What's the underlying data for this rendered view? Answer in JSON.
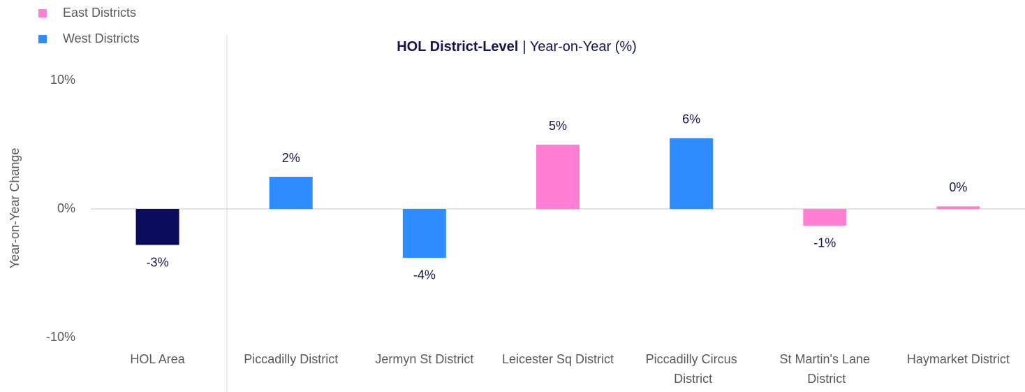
{
  "chart_data": {
    "type": "bar",
    "title": {
      "main": "HOL District-Level",
      "sub": "| Year-on-Year (%)"
    },
    "y_label": "Year-on-Year Change",
    "categories": [
      "HOL Area",
      "Piccadilly District",
      "Jermyn St District",
      "Leicester Sq District",
      "Piccadilly Circus District",
      "St Martin's Lane District",
      "Haymarket District"
    ],
    "values": [
      -2.8,
      2.5,
      -3.8,
      5.0,
      5.5,
      -1.3,
      0.2
    ],
    "value_labels": [
      "-3%",
      "2%",
      "-4%",
      "5%",
      "6%",
      "-1%",
      "0%"
    ],
    "colors": [
      "#0b0b5c",
      "#2f8cff",
      "#2f8cff",
      "#ff7fd4",
      "#2f8cff",
      "#ff7fd4",
      "#ff7fd4"
    ],
    "legend": [
      {
        "name": "East Districts",
        "color": "#ff7fd4"
      },
      {
        "name": "West Districts",
        "color": "#2f8cff"
      }
    ],
    "ylim": [
      -10,
      10
    ],
    "yticks": [
      {
        "value": -10,
        "label": "-10%"
      },
      {
        "value": 0,
        "label": "0%"
      },
      {
        "value": 10,
        "label": "10%"
      }
    ],
    "grid": false
  }
}
